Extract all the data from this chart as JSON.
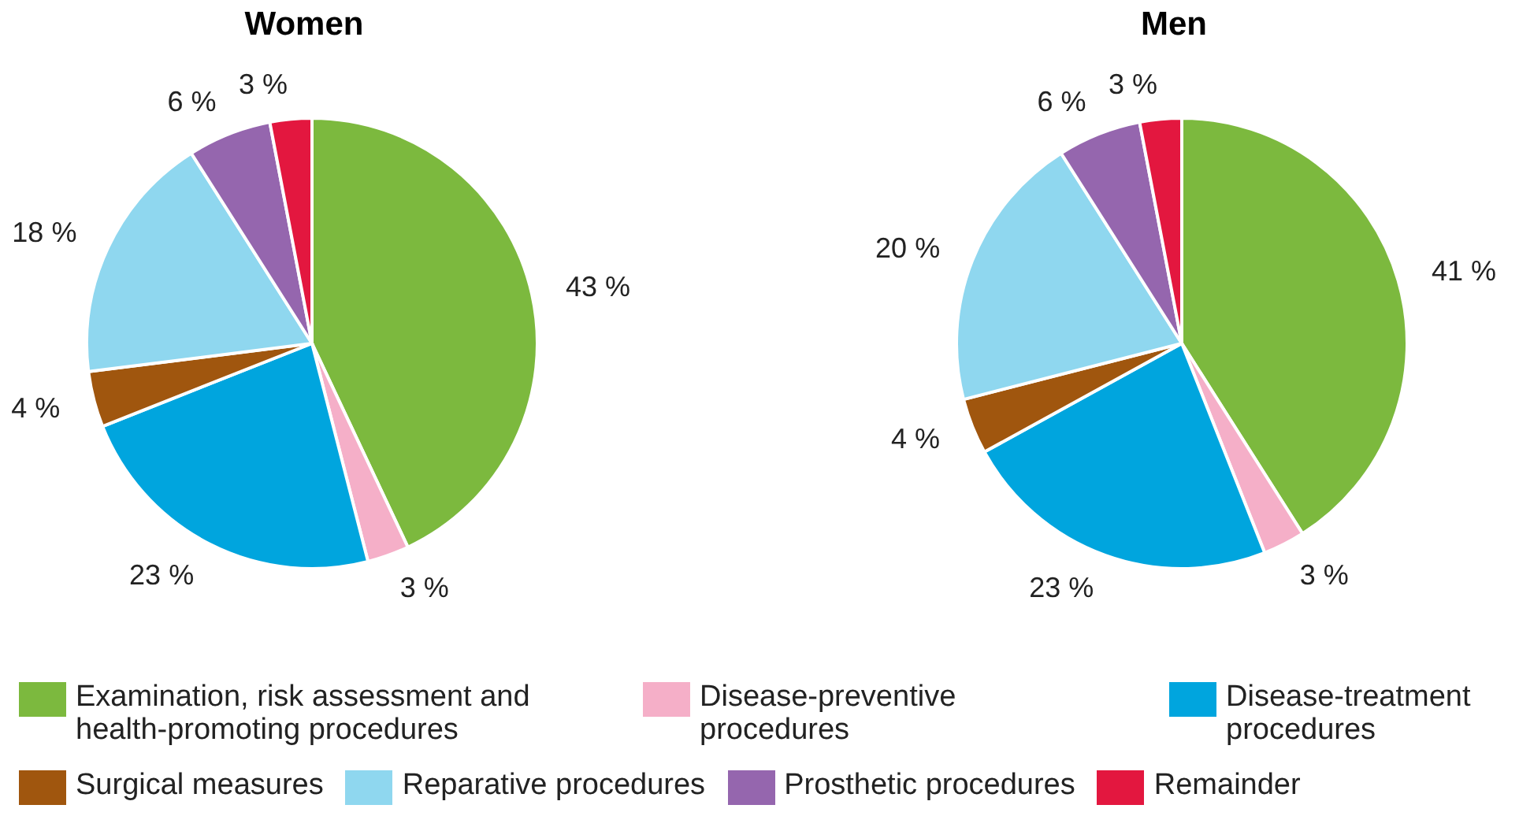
{
  "chart_data": [
    {
      "type": "pie",
      "title": "Women",
      "categories": [
        "Examination, risk assessment and health-promoting procedures",
        "Disease-preventive procedures",
        "Disease-treatment procedures",
        "Surgical measures",
        "Reparative procedures",
        "Prosthetic procedures",
        "Remainder"
      ],
      "values": [
        43,
        3,
        23,
        4,
        18,
        6,
        3
      ],
      "value_labels": [
        "43 %",
        "3 %",
        "23 %",
        "4 %",
        "18 %",
        "6 %",
        "3 %"
      ],
      "colors": [
        "#7cb93e",
        "#f5afc8",
        "#00a5de",
        "#a0560e",
        "#8fd7ef",
        "#9566ae",
        "#e3173f"
      ],
      "legend": "bottom"
    },
    {
      "type": "pie",
      "title": "Men",
      "categories": [
        null,
        null,
        null,
        null,
        null,
        null,
        null
      ],
      "values": [
        41,
        3,
        23,
        4,
        20,
        6,
        3
      ],
      "value_labels": [
        "41 %",
        "3 %",
        "23 %",
        "4 %",
        "20 %",
        "6 %",
        "3 %"
      ],
      "colors": [
        "#7cb93e",
        "#f5afc8",
        "#00a5de",
        "#a0560e",
        "#8fd7ef",
        "#9566ae",
        "#e3173f"
      ]
    }
  ]
}
